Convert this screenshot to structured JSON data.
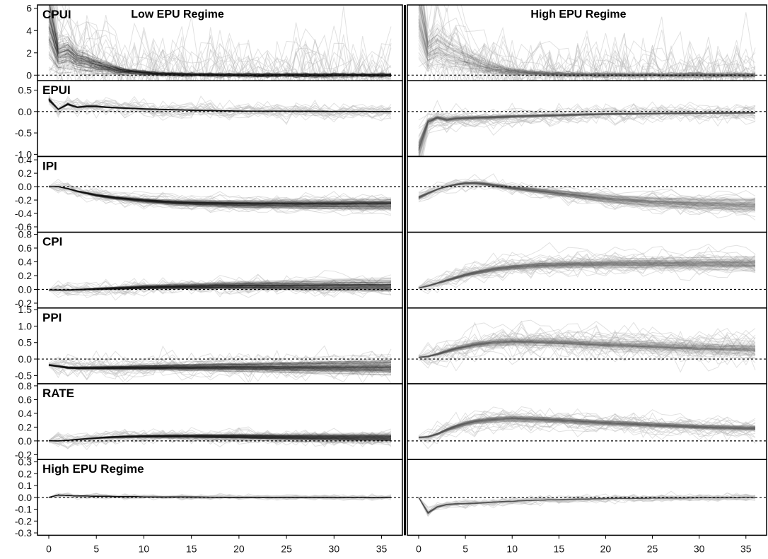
{
  "chart_data": {
    "type": "line",
    "x_range": [
      0,
      36
    ],
    "x_ticks": [
      0,
      5,
      10,
      15,
      20,
      25,
      30,
      35
    ],
    "columns": [
      {
        "title": "Low EPU Regime"
      },
      {
        "title": "High EPU Regime"
      }
    ],
    "panels": [
      {
        "label": "CPUI",
        "ylim": [
          -0.5,
          6.3
        ],
        "y_ticks": [
          {
            "v": 0,
            "t": "0"
          },
          {
            "v": 2,
            "t": "2"
          },
          {
            "v": 4,
            "t": "4"
          },
          {
            "v": 6,
            "t": "6"
          }
        ],
        "low": {
          "path": [
            [
              0,
              4.9
            ],
            [
              1,
              1.8
            ],
            [
              2,
              2.0
            ],
            [
              3,
              1.4
            ],
            [
              4,
              1.2
            ],
            [
              5,
              0.9
            ],
            [
              6,
              0.7
            ],
            [
              7,
              0.5
            ],
            [
              8,
              0.35
            ],
            [
              10,
              0.2
            ],
            [
              12,
              0.1
            ],
            [
              15,
              0.04
            ],
            [
              20,
              0.01
            ],
            [
              36,
              0.0
            ]
          ],
          "spread": 0.35,
          "outlier": 1.2,
          "tone": "dark",
          "drift": 0
        },
        "high": {
          "path": [
            [
              0,
              5.0
            ],
            [
              1,
              1.9
            ],
            [
              2,
              2.4
            ],
            [
              3,
              1.9
            ],
            [
              4,
              1.6
            ],
            [
              5,
              1.3
            ],
            [
              6,
              1.0
            ],
            [
              7,
              0.75
            ],
            [
              8,
              0.55
            ],
            [
              10,
              0.3
            ],
            [
              12,
              0.16
            ],
            [
              15,
              0.07
            ],
            [
              20,
              0.02
            ],
            [
              36,
              0.0
            ]
          ],
          "spread": 0.45,
          "outlier": 1.0,
          "tone": "mid",
          "drift": 0
        }
      },
      {
        "label": "EPUI",
        "ylim": [
          -1.05,
          0.72
        ],
        "y_ticks": [
          {
            "v": -1.0,
            "t": "-1.0"
          },
          {
            "v": -0.5,
            "t": "-0.5"
          },
          {
            "v": 0,
            "t": "0.0"
          },
          {
            "v": 0.5,
            "t": "0.5"
          }
        ],
        "low": {
          "path": [
            [
              0,
              0.28
            ],
            [
              1,
              0.05
            ],
            [
              2,
              0.17
            ],
            [
              3,
              0.1
            ],
            [
              4,
              0.12
            ],
            [
              5,
              0.12
            ],
            [
              6,
              0.1
            ],
            [
              8,
              0.08
            ],
            [
              10,
              0.06
            ],
            [
              15,
              0.03
            ],
            [
              20,
              0.01
            ],
            [
              36,
              0.0
            ]
          ],
          "spread": 0.06,
          "outlier": 0.35,
          "tone": "dark",
          "drift": 0
        },
        "high": {
          "path": [
            [
              0,
              -0.9
            ],
            [
              1,
              -0.25
            ],
            [
              2,
              -0.15
            ],
            [
              3,
              -0.2
            ],
            [
              4,
              -0.17
            ],
            [
              5,
              -0.16
            ],
            [
              6,
              -0.15
            ],
            [
              8,
              -0.14
            ],
            [
              10,
              -0.12
            ],
            [
              15,
              -0.09
            ],
            [
              20,
              -0.06
            ],
            [
              25,
              -0.05
            ],
            [
              30,
              -0.04
            ],
            [
              36,
              -0.03
            ]
          ],
          "spread": 0.12,
          "outlier": 0.4,
          "tone": "mid",
          "drift": 0
        }
      },
      {
        "label": "IPI",
        "ylim": [
          -0.68,
          0.45
        ],
        "y_ticks": [
          {
            "v": -0.6,
            "t": "-0.6"
          },
          {
            "v": -0.4,
            "t": "-0.4"
          },
          {
            "v": -0.2,
            "t": "-0.2"
          },
          {
            "v": 0,
            "t": "0.0"
          },
          {
            "v": 0.2,
            "t": "0.2"
          },
          {
            "v": 0.4,
            "t": "0.4"
          }
        ],
        "low": {
          "path": [
            [
              0,
              0.0
            ],
            [
              1,
              0.0
            ],
            [
              2,
              -0.03
            ],
            [
              3,
              -0.07
            ],
            [
              4,
              -0.1
            ],
            [
              5,
              -0.13
            ],
            [
              7,
              -0.17
            ],
            [
              10,
              -0.21
            ],
            [
              13,
              -0.24
            ],
            [
              16,
              -0.255
            ],
            [
              20,
              -0.265
            ],
            [
              25,
              -0.27
            ],
            [
              36,
              -0.27
            ]
          ],
          "spread": 0.05,
          "outlier": 0.25,
          "tone": "dark",
          "drift": 0.15
        },
        "high": {
          "path": [
            [
              0,
              -0.16
            ],
            [
              1,
              -0.1
            ],
            [
              2,
              -0.04
            ],
            [
              3,
              0.0
            ],
            [
              4,
              0.03
            ],
            [
              5,
              0.05
            ],
            [
              6,
              0.05
            ],
            [
              7,
              0.04
            ],
            [
              8,
              0.02
            ],
            [
              10,
              -0.02
            ],
            [
              15,
              -0.1
            ],
            [
              20,
              -0.18
            ],
            [
              25,
              -0.23
            ],
            [
              30,
              -0.26
            ],
            [
              36,
              -0.28
            ]
          ],
          "spread": 0.07,
          "outlier": 0.25,
          "tone": "mid",
          "drift": 0.2
        }
      },
      {
        "label": "CPI",
        "ylim": [
          -0.27,
          0.83
        ],
        "y_ticks": [
          {
            "v": -0.2,
            "t": "-0.2"
          },
          {
            "v": 0,
            "t": "0.0"
          },
          {
            "v": 0.2,
            "t": "0.2"
          },
          {
            "v": 0.4,
            "t": "0.4"
          },
          {
            "v": 0.6,
            "t": "0.6"
          },
          {
            "v": 0.8,
            "t": "0.8"
          }
        ],
        "low": {
          "path": [
            [
              0,
              -0.01
            ],
            [
              2,
              -0.01
            ],
            [
              4,
              0.0
            ],
            [
              6,
              0.01
            ],
            [
              8,
              0.02
            ],
            [
              10,
              0.03
            ],
            [
              15,
              0.04
            ],
            [
              20,
              0.05
            ],
            [
              25,
              0.05
            ],
            [
              36,
              0.05
            ]
          ],
          "spread": 0.03,
          "outlier": 0.25,
          "tone": "dark",
          "drift": 0.15
        },
        "high": {
          "path": [
            [
              0,
              0.02
            ],
            [
              1,
              0.05
            ],
            [
              2,
              0.09
            ],
            [
              3,
              0.13
            ],
            [
              4,
              0.17
            ],
            [
              5,
              0.21
            ],
            [
              6,
              0.24
            ],
            [
              8,
              0.29
            ],
            [
              10,
              0.32
            ],
            [
              13,
              0.35
            ],
            [
              16,
              0.36
            ],
            [
              20,
              0.37
            ],
            [
              25,
              0.37
            ],
            [
              30,
              0.37
            ],
            [
              36,
              0.37
            ]
          ],
          "spread": 0.06,
          "outlier": 0.3,
          "tone": "mid",
          "drift": 0.15
        }
      },
      {
        "label": "PPI",
        "ylim": [
          -0.75,
          1.55
        ],
        "y_ticks": [
          {
            "v": -0.5,
            "t": "-0.5"
          },
          {
            "v": 0,
            "t": "0.0"
          },
          {
            "v": 0.5,
            "t": "0.5"
          },
          {
            "v": 1.0,
            "t": "1.0"
          },
          {
            "v": 1.5,
            "t": "1.5"
          }
        ],
        "low": {
          "path": [
            [
              0,
              -0.18
            ],
            [
              1,
              -0.22
            ],
            [
              2,
              -0.26
            ],
            [
              3,
              -0.27
            ],
            [
              5,
              -0.27
            ],
            [
              8,
              -0.26
            ],
            [
              12,
              -0.25
            ],
            [
              20,
              -0.24
            ],
            [
              36,
              -0.24
            ]
          ],
          "spread": 0.05,
          "outlier": 0.4,
          "tone": "dark",
          "drift": 0.2
        },
        "high": {
          "path": [
            [
              0,
              0.05
            ],
            [
              1,
              0.08
            ],
            [
              2,
              0.15
            ],
            [
              3,
              0.24
            ],
            [
              4,
              0.32
            ],
            [
              5,
              0.38
            ],
            [
              6,
              0.44
            ],
            [
              8,
              0.51
            ],
            [
              10,
              0.54
            ],
            [
              13,
              0.53
            ],
            [
              16,
              0.5
            ],
            [
              20,
              0.45
            ],
            [
              25,
              0.4
            ],
            [
              30,
              0.35
            ],
            [
              36,
              0.32
            ]
          ],
          "spread": 0.1,
          "outlier": 0.5,
          "tone": "mid",
          "drift": 0.2
        }
      },
      {
        "label": "RATE",
        "ylim": [
          -0.27,
          0.83
        ],
        "y_ticks": [
          {
            "v": -0.2,
            "t": "-0.2"
          },
          {
            "v": 0,
            "t": "0.0"
          },
          {
            "v": 0.2,
            "t": "0.2"
          },
          {
            "v": 0.4,
            "t": "0.4"
          },
          {
            "v": 0.6,
            "t": "0.6"
          },
          {
            "v": 0.8,
            "t": "0.8"
          }
        ],
        "low": {
          "path": [
            [
              0,
              0.0
            ],
            [
              1,
              0.0
            ],
            [
              2,
              0.01
            ],
            [
              3,
              0.02
            ],
            [
              4,
              0.03
            ],
            [
              6,
              0.05
            ],
            [
              8,
              0.06
            ],
            [
              10,
              0.065
            ],
            [
              15,
              0.065
            ],
            [
              20,
              0.06
            ],
            [
              25,
              0.05
            ],
            [
              30,
              0.045
            ],
            [
              36,
              0.04
            ]
          ],
          "spread": 0.03,
          "outlier": 0.25,
          "tone": "dark",
          "drift": 0.1
        },
        "high": {
          "path": [
            [
              0,
              0.05
            ],
            [
              1,
              0.06
            ],
            [
              2,
              0.1
            ],
            [
              3,
              0.16
            ],
            [
              4,
              0.21
            ],
            [
              5,
              0.25
            ],
            [
              6,
              0.28
            ],
            [
              8,
              0.31
            ],
            [
              10,
              0.32
            ],
            [
              13,
              0.31
            ],
            [
              16,
              0.29
            ],
            [
              20,
              0.26
            ],
            [
              25,
              0.23
            ],
            [
              30,
              0.2
            ],
            [
              36,
              0.18
            ]
          ],
          "spread": 0.06,
          "outlier": 0.3,
          "tone": "mid",
          "drift": 0.05
        }
      },
      {
        "label": "High EPU Regime",
        "ylim": [
          -0.32,
          0.32
        ],
        "y_ticks": [
          {
            "v": -0.3,
            "t": "-0.3"
          },
          {
            "v": -0.2,
            "t": "-0.2"
          },
          {
            "v": -0.1,
            "t": "-0.1"
          },
          {
            "v": 0,
            "t": "0.0"
          },
          {
            "v": 0.1,
            "t": "0.1"
          },
          {
            "v": 0.2,
            "t": "0.2"
          },
          {
            "v": 0.3,
            "t": "0.3"
          }
        ],
        "low": {
          "path": [
            [
              0,
              0.0
            ],
            [
              1,
              0.02
            ],
            [
              2,
              0.015
            ],
            [
              3,
              0.012
            ],
            [
              5,
              0.01
            ],
            [
              8,
              0.006
            ],
            [
              12,
              0.003
            ],
            [
              20,
              0.001
            ],
            [
              36,
              0.0
            ]
          ],
          "spread": 0.015,
          "outlier": 0.12,
          "tone": "dark",
          "drift": 0
        },
        "high": {
          "path": [
            [
              0,
              0.0
            ],
            [
              1,
              -0.13
            ],
            [
              2,
              -0.08
            ],
            [
              3,
              -0.06
            ],
            [
              4,
              -0.055
            ],
            [
              6,
              -0.05
            ],
            [
              8,
              -0.04
            ],
            [
              12,
              -0.025
            ],
            [
              20,
              -0.01
            ],
            [
              36,
              0.0
            ]
          ],
          "spread": 0.03,
          "outlier": 0.2,
          "tone": "mid",
          "drift": 0
        }
      }
    ]
  }
}
